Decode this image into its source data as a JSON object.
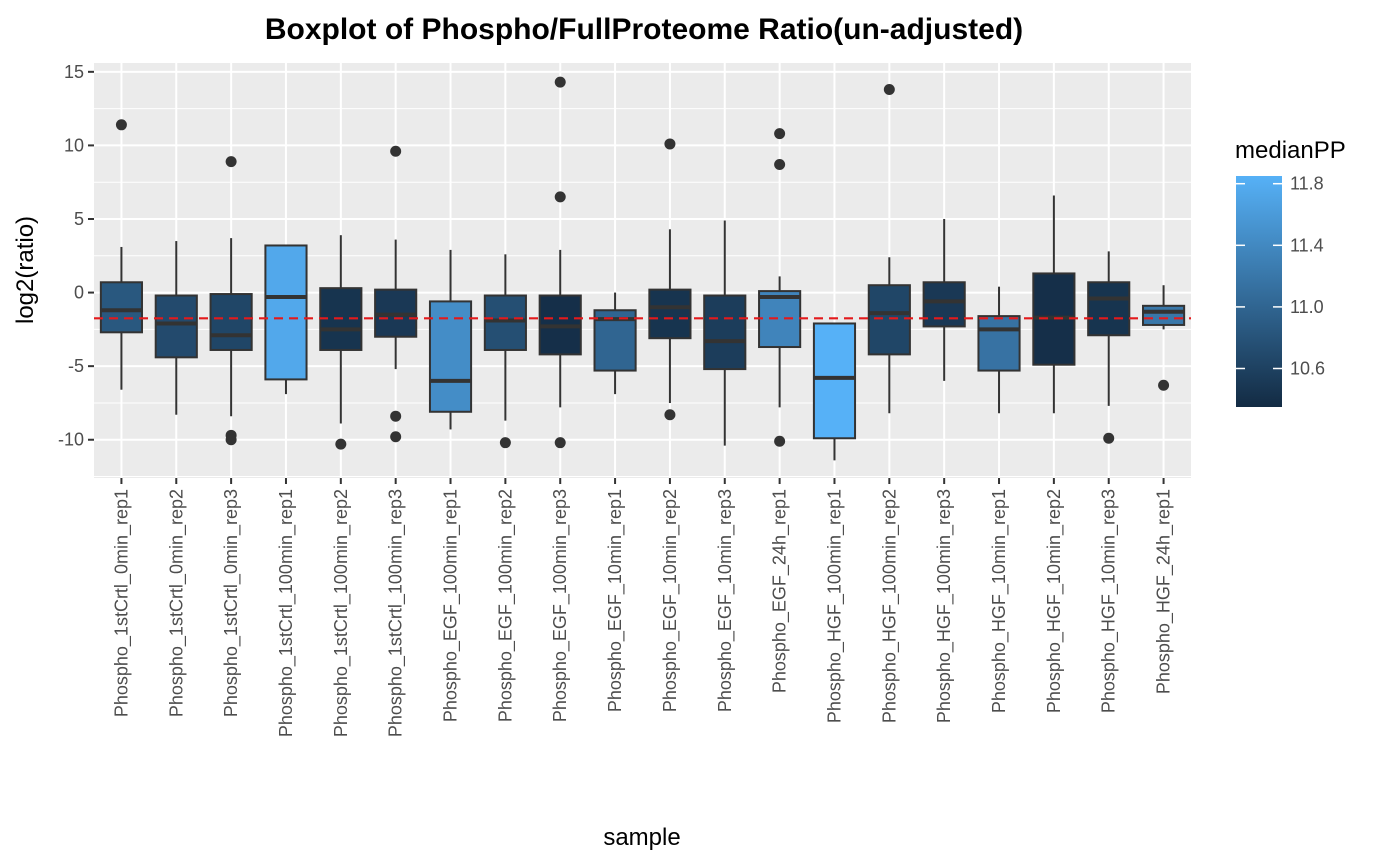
{
  "chart_data": {
    "type": "boxplot",
    "title": "Boxplot of Phospho/FullProteome Ratio(un-adjusted)",
    "xlabel": "sample",
    "ylabel": "log2(ratio)",
    "ylim": [
      -12.6,
      15.6
    ],
    "yticks": [
      -10,
      -5,
      0,
      5,
      10,
      15
    ],
    "yticklabels": [
      "-10",
      "-5",
      "0",
      "5",
      "10",
      "15"
    ],
    "reference_line": {
      "y": -1.75,
      "style": "dashed",
      "color": "#e31a1c"
    },
    "grid": true,
    "legend": {
      "title": "medianPP",
      "position": "right",
      "min": 10.35,
      "max": 11.85,
      "breaks": [
        10.6,
        11.0,
        11.4,
        11.8
      ],
      "breaklabels": [
        "10.6",
        "11.0",
        "11.4",
        "11.8"
      ],
      "low_color": "#132b43",
      "high_color": "#56b1f7"
    },
    "boxes": [
      {
        "name": "Phospho_1stCrtl_0min_rep1",
        "median_pp": 10.85,
        "whisker_low": -6.6,
        "q1": -2.7,
        "median": -1.2,
        "q3": 0.7,
        "whisker_high": 3.1,
        "outliers": [
          11.4
        ]
      },
      {
        "name": "Phospho_1stCrtl_0min_rep2",
        "median_pp": 10.7,
        "whisker_low": -8.3,
        "q1": -4.4,
        "median": -2.1,
        "q3": -0.2,
        "whisker_high": 3.5,
        "outliers": []
      },
      {
        "name": "Phospho_1stCrtl_0min_rep3",
        "median_pp": 10.65,
        "whisker_low": -8.4,
        "q1": -3.9,
        "median": -2.9,
        "q3": -0.1,
        "whisker_high": 3.7,
        "outliers": [
          8.9,
          -9.7,
          -10.0
        ]
      },
      {
        "name": "Phospho_1stCrtl_100min_rep1",
        "median_pp": 11.75,
        "whisker_low": -6.9,
        "q1": -5.9,
        "median": -0.3,
        "q3": 3.2,
        "whisker_high": 3.2,
        "outliers": []
      },
      {
        "name": "Phospho_1stCrtl_100min_rep2",
        "median_pp": 10.45,
        "whisker_low": -8.9,
        "q1": -3.9,
        "median": -2.5,
        "q3": 0.3,
        "whisker_high": 3.9,
        "outliers": [
          -10.3
        ]
      },
      {
        "name": "Phospho_1stCrtl_100min_rep3",
        "median_pp": 10.5,
        "whisker_low": -5.2,
        "q1": -3.0,
        "median": -1.5,
        "q3": 0.2,
        "whisker_high": 3.6,
        "outliers": [
          9.6,
          -8.4,
          -9.8
        ]
      },
      {
        "name": "Phospho_EGF_100min_rep1",
        "median_pp": 11.45,
        "whisker_low": -9.3,
        "q1": -8.1,
        "median": -6.0,
        "q3": -0.6,
        "whisker_high": 2.9,
        "outliers": []
      },
      {
        "name": "Phospho_EGF_100min_rep2",
        "median_pp": 10.75,
        "whisker_low": -8.7,
        "q1": -3.9,
        "median": -1.9,
        "q3": -0.2,
        "whisker_high": 2.6,
        "outliers": [
          -10.2
        ]
      },
      {
        "name": "Phospho_EGF_100min_rep3",
        "median_pp": 10.4,
        "whisker_low": -7.8,
        "q1": -4.2,
        "median": -2.3,
        "q3": -0.2,
        "whisker_high": 2.9,
        "outliers": [
          14.3,
          6.5,
          -10.2
        ]
      },
      {
        "name": "Phospho_EGF_10min_rep1",
        "median_pp": 11.0,
        "whisker_low": -6.9,
        "q1": -5.3,
        "median": -1.8,
        "q3": -1.2,
        "whisker_high": 0.0,
        "outliers": []
      },
      {
        "name": "Phospho_EGF_10min_rep2",
        "median_pp": 10.45,
        "whisker_low": -7.5,
        "q1": -3.1,
        "median": -1.0,
        "q3": 0.2,
        "whisker_high": 4.3,
        "outliers": [
          10.1,
          -8.3
        ]
      },
      {
        "name": "Phospho_EGF_10min_rep3",
        "median_pp": 10.55,
        "whisker_low": -10.4,
        "q1": -5.2,
        "median": -3.3,
        "q3": -0.2,
        "whisker_high": 4.9,
        "outliers": []
      },
      {
        "name": "Phospho_EGF_24h_rep1",
        "median_pp": 11.35,
        "whisker_low": -7.8,
        "q1": -3.7,
        "median": -0.3,
        "q3": 0.1,
        "whisker_high": 1.1,
        "outliers": [
          10.8,
          8.7,
          -10.1
        ]
      },
      {
        "name": "Phospho_HGF_100min_rep1",
        "median_pp": 11.85,
        "whisker_low": -11.4,
        "q1": -9.9,
        "median": -5.8,
        "q3": -2.1,
        "whisker_high": -2.1,
        "outliers": []
      },
      {
        "name": "Phospho_HGF_100min_rep2",
        "median_pp": 10.65,
        "whisker_low": -8.2,
        "q1": -4.2,
        "median": -1.4,
        "q3": 0.5,
        "whisker_high": 2.4,
        "outliers": [
          13.8
        ]
      },
      {
        "name": "Phospho_HGF_100min_rep3",
        "median_pp": 10.5,
        "whisker_low": -6.0,
        "q1": -2.3,
        "median": -0.6,
        "q3": 0.7,
        "whisker_high": 5.0,
        "outliers": []
      },
      {
        "name": "Phospho_HGF_10min_rep1",
        "median_pp": 11.15,
        "whisker_low": -8.2,
        "q1": -5.3,
        "median": -2.5,
        "q3": -1.6,
        "whisker_high": 0.4,
        "outliers": []
      },
      {
        "name": "Phospho_HGF_10min_rep2",
        "median_pp": 10.4,
        "whisker_low": -8.2,
        "q1": -4.9,
        "median": -1.7,
        "q3": 1.3,
        "whisker_high": 6.6,
        "outliers": []
      },
      {
        "name": "Phospho_HGF_10min_rep3",
        "median_pp": 10.45,
        "whisker_low": -7.7,
        "q1": -2.9,
        "median": -0.4,
        "q3": 0.7,
        "whisker_high": 2.8,
        "outliers": [
          -9.9
        ]
      },
      {
        "name": "Phospho_HGF_24h_rep1",
        "median_pp": 11.2,
        "whisker_low": -2.5,
        "q1": -2.2,
        "median": -1.3,
        "q3": -0.9,
        "whisker_high": 0.5,
        "outliers": [
          -6.3
        ]
      }
    ]
  }
}
